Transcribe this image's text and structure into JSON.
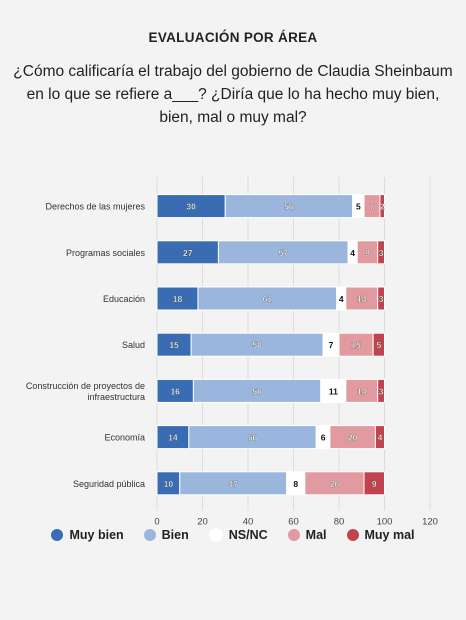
{
  "header": {
    "title": "EVALUACIÓN POR ÁREA",
    "question_lines": [
      "¿Cómo calificaría el trabajo del gobierno de Claudia Sheinbaum",
      "en lo que se refiere a___? ¿Diría que lo ha hecho muy bien,",
      "bien, mal o muy mal?"
    ]
  },
  "chart_data": {
    "type": "bar",
    "orientation": "horizontal",
    "stacked": true,
    "categories": [
      "Derechos de las mujeres",
      "Programas sociales",
      "Educación",
      "Salud",
      "Construcción de proyectos de infraestructura",
      "Economía",
      "Seguridad pública"
    ],
    "series": [
      {
        "name": "Muy bien",
        "color": "#3a6cb4",
        "values": [
          30,
          27,
          18,
          15,
          16,
          14,
          10
        ]
      },
      {
        "name": "Bien",
        "color": "#9ab6dc",
        "values": [
          56,
          57,
          61,
          58,
          56,
          56,
          47
        ]
      },
      {
        "name": "NS/NC",
        "color": "#ffffff",
        "values": [
          5,
          4,
          4,
          7,
          11,
          6,
          8
        ]
      },
      {
        "name": "Mal",
        "color": "#e19a9f",
        "values": [
          7,
          9,
          14,
          15,
          14,
          20,
          26
        ]
      },
      {
        "name": "Muy mal",
        "color": "#c0444f",
        "values": [
          2,
          3,
          3,
          5,
          3,
          4,
          9
        ]
      }
    ],
    "xlim": [
      0,
      120
    ],
    "xticks": [
      0,
      20,
      40,
      60,
      80,
      100,
      120
    ],
    "grid": true,
    "legend_position": "bottom"
  }
}
